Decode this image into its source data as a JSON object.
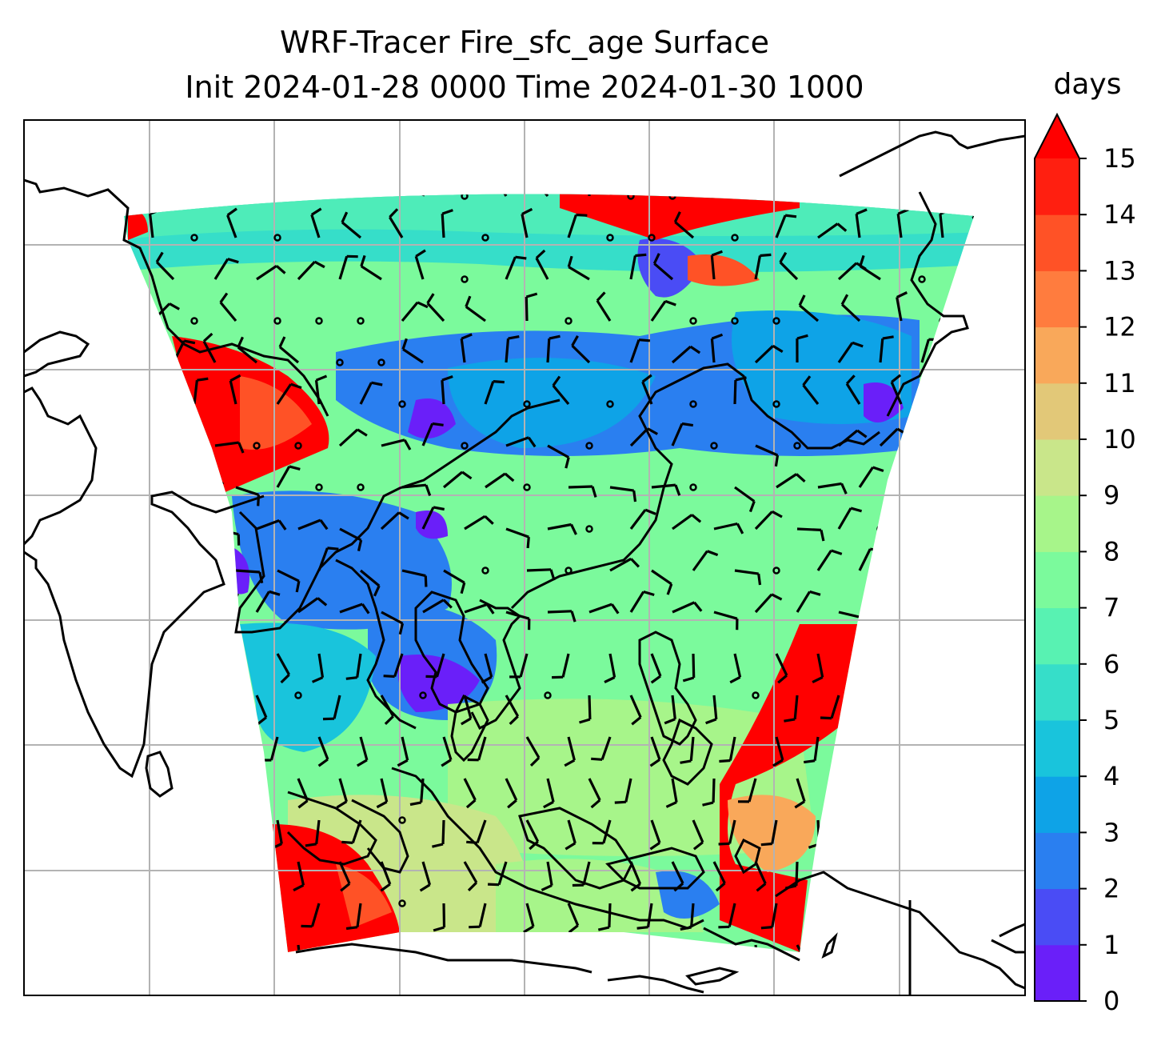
{
  "title_line1": "WRF-Tracer Fire_sfc_age Surface",
  "title_line2": "Init 2024-01-28 0000 Time 2024-01-30 1000",
  "colorbar": {
    "label": "days",
    "ticks": [
      "0",
      "1",
      "2",
      "3",
      "4",
      "5",
      "6",
      "7",
      "8",
      "9",
      "10",
      "11",
      "12",
      "13",
      "14",
      "15"
    ],
    "colors": [
      "#6a1ff9",
      "#4a4cf5",
      "#2a7ff0",
      "#0ea3e7",
      "#19c4dc",
      "#36dec9",
      "#58f2b2",
      "#7bfa9c",
      "#a7f58a",
      "#c9e68a",
      "#e2c878",
      "#f9a85a",
      "#ff7c3e",
      "#ff5226",
      "#ff1f10"
    ],
    "extend_color": "#ff0000"
  },
  "map": {
    "coastline_color": "#000000",
    "grid_color": "#b3b3b3",
    "barb_color": "#000000"
  }
}
